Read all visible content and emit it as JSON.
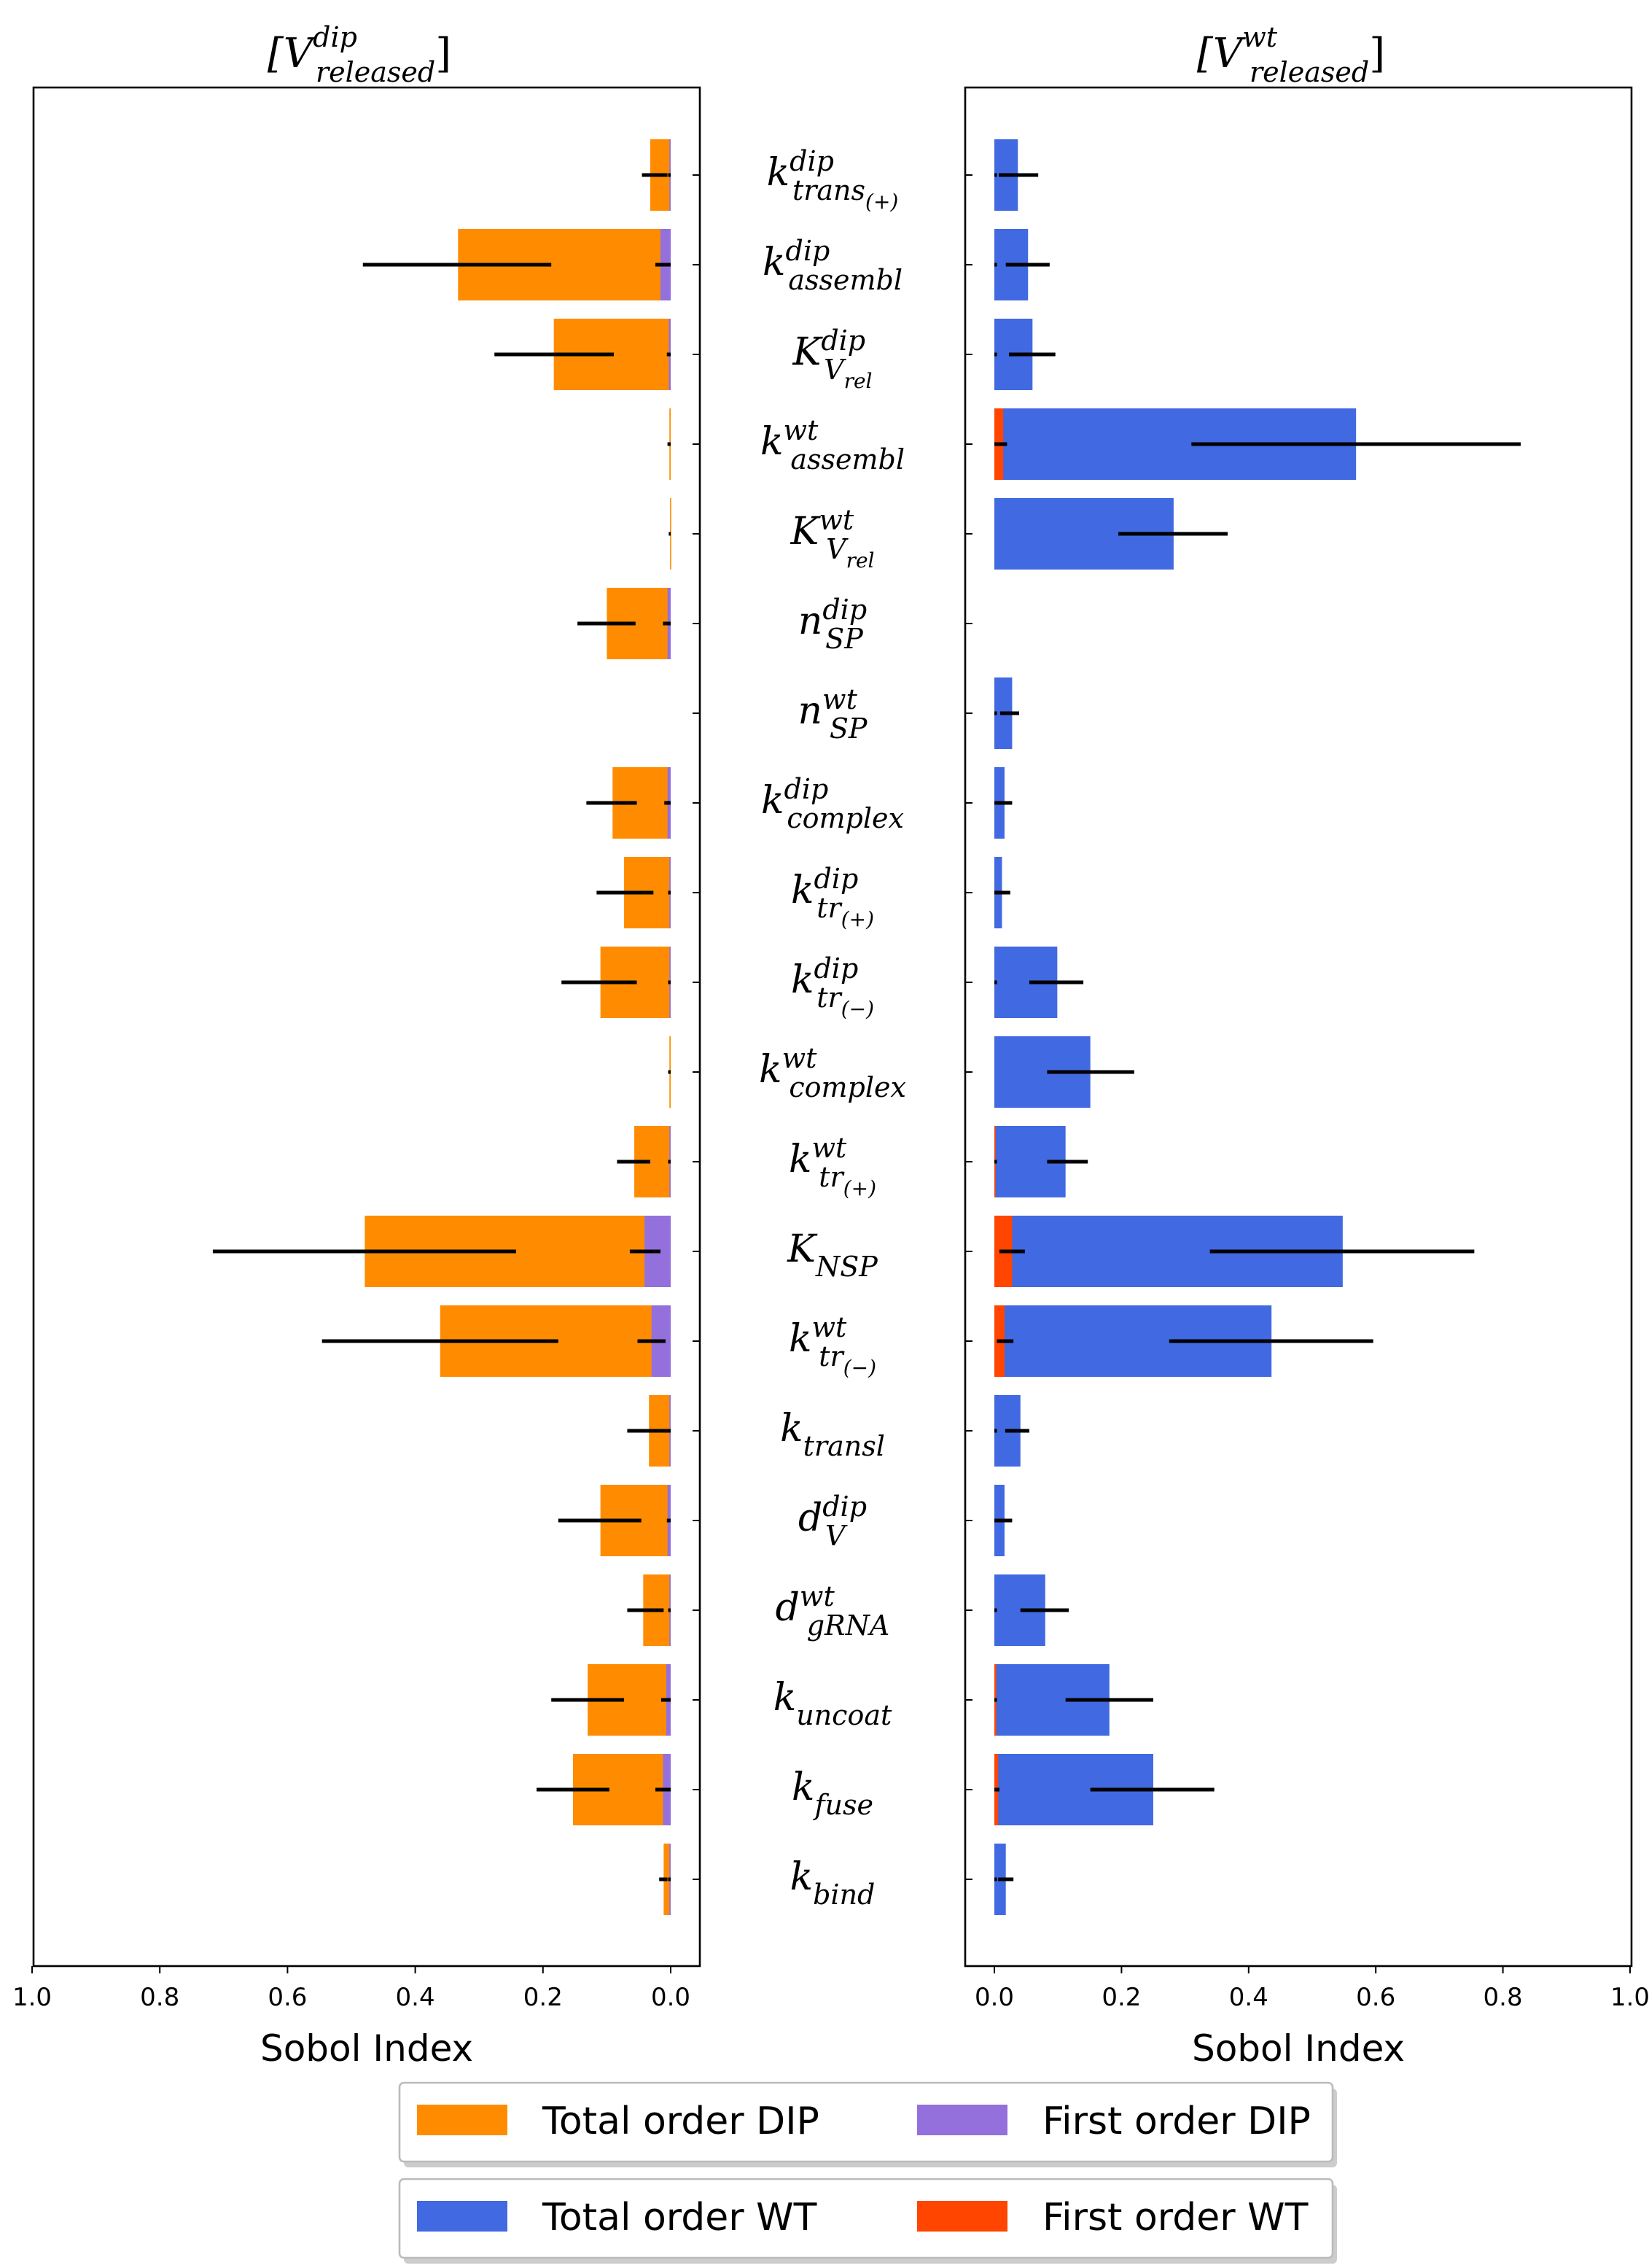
{
  "chart_data": [
    {
      "type": "bar",
      "orientation": "horizontal",
      "title": {
        "base": "[V",
        "sup": "dip",
        "sub": "released",
        "close": "]"
      },
      "xlabel": "Sobol Index",
      "xlim": [
        1.0,
        -0.03
      ],
      "x_inverted": true,
      "xticks": [
        "1.0",
        "0.8",
        "0.6",
        "0.4",
        "0.2",
        "0.0"
      ],
      "series": [
        {
          "name": "Total order DIP",
          "color": "#ff8c00",
          "values": [
            0.032,
            0.333,
            0.183,
            0.002,
            0.001,
            0.1,
            0,
            0.091,
            0.073,
            0.11,
            0.002,
            0.057,
            0.479,
            0.361,
            0.034,
            0.11,
            0.043,
            0.13,
            0.153,
            0.011
          ],
          "error_low": [
            0.005,
            0.187,
            0.089,
            0,
            0,
            0.055,
            0,
            0.053,
            0.027,
            0.053,
            0,
            0.032,
            0.242,
            0.176,
            0,
            0.046,
            0.011,
            0.073,
            0.096,
            0.005
          ],
          "error_high": [
            0.045,
            0.482,
            0.276,
            0.005,
            0.003,
            0.146,
            0,
            0.132,
            0.116,
            0.171,
            0.004,
            0.084,
            0.717,
            0.546,
            0.068,
            0.176,
            0.068,
            0.187,
            0.21,
            0.018
          ]
        },
        {
          "name": "First order DIP",
          "color": "#9370db",
          "values": [
            0.002,
            0.016,
            0.003,
            0,
            0,
            0.005,
            0,
            0.005,
            0.002,
            0.002,
            0,
            0.002,
            0.041,
            0.03,
            0.002,
            0.005,
            0.002,
            0.007,
            0.012,
            0.002
          ],
          "error_low": [
            0,
            0,
            0,
            0,
            0,
            0,
            0,
            0,
            0,
            0,
            0,
            0,
            0.016,
            0.008,
            0,
            0,
            0,
            0,
            0,
            0
          ],
          "error_high": [
            0.004,
            0.024,
            0.006,
            0,
            0,
            0.012,
            0,
            0.01,
            0.004,
            0.004,
            0,
            0.004,
            0.064,
            0.052,
            0.004,
            0.006,
            0.004,
            0.015,
            0.024,
            0.004
          ]
        }
      ]
    },
    {
      "type": "bar",
      "orientation": "horizontal",
      "title": {
        "base": "[V",
        "sup": "wt",
        "sub": "released",
        "close": "]"
      },
      "xlabel": "Sobol Index",
      "xlim": [
        -0.04,
        1.0
      ],
      "xticks": [
        "0.0",
        "0.2",
        "0.4",
        "0.6",
        "0.8",
        "1.0"
      ],
      "series": [
        {
          "name": "Total order WT",
          "color": "#4169e1",
          "values": [
            0.037,
            0.053,
            0.06,
            0.569,
            0.282,
            0,
            0.028,
            0.016,
            0.012,
            0.099,
            0.151,
            0.112,
            0.548,
            0.436,
            0.041,
            0.016,
            0.08,
            0.181,
            0.25,
            0.018
          ],
          "error_low": [
            0.007,
            0.018,
            0.023,
            0.31,
            0.195,
            0,
            0.009,
            0.004,
            0.002,
            0.055,
            0.083,
            0.083,
            0.339,
            0.275,
            0.017,
            0.004,
            0.041,
            0.112,
            0.151,
            0.006
          ],
          "error_high": [
            0.069,
            0.087,
            0.096,
            0.828,
            0.367,
            0,
            0.039,
            0.028,
            0.025,
            0.14,
            0.22,
            0.147,
            0.755,
            0.596,
            0.055,
            0.028,
            0.117,
            0.25,
            0.346,
            0.03
          ]
        },
        {
          "name": "First order WT",
          "color": "#ff4500",
          "values": [
            0,
            0,
            0,
            0.014,
            0,
            0,
            0,
            0,
            0,
            0,
            0,
            0.002,
            0.028,
            0.016,
            0,
            0,
            0,
            0.003,
            0.006,
            0
          ],
          "error_low": [
            0,
            0,
            0,
            0,
            0,
            0,
            0,
            0,
            0,
            0,
            0,
            0,
            0.008,
            0.004,
            0,
            0,
            0,
            0,
            0,
            0
          ],
          "error_high": [
            0.004,
            0.004,
            0.004,
            0.02,
            0,
            0,
            0.004,
            0.004,
            0.004,
            0.004,
            0,
            0.004,
            0.048,
            0.03,
            0.004,
            0.004,
            0.004,
            0.004,
            0.008,
            0.004
          ]
        }
      ]
    }
  ],
  "parameters": [
    {
      "base": "k",
      "sup": "dip",
      "sub": "trans",
      "subsub": "(+)"
    },
    {
      "base": "k",
      "sup": "dip",
      "sub": "assembl"
    },
    {
      "base": "K",
      "sup": "dip",
      "sub": "V",
      "subsub": "rel"
    },
    {
      "base": "k",
      "sup": "wt",
      "sub": "assembl"
    },
    {
      "base": "K",
      "sup": "wt",
      "sub": "V",
      "subsub": "rel"
    },
    {
      "base": "n",
      "sup": "dip",
      "sub": "SP"
    },
    {
      "base": "n",
      "sup": "wt",
      "sub": "SP"
    },
    {
      "base": "k",
      "sup": "dip",
      "sub": "complex"
    },
    {
      "base": "k",
      "sup": "dip",
      "sub": "tr",
      "subsub": "(+)"
    },
    {
      "base": "k",
      "sup": "dip",
      "sub": "tr",
      "subsub": "(−)"
    },
    {
      "base": "k",
      "sup": "wt",
      "sub": "complex"
    },
    {
      "base": "k",
      "sup": "wt",
      "sub": "tr",
      "subsub": "(+)"
    },
    {
      "base": "K",
      "sub": "NSP"
    },
    {
      "base": "k",
      "sup": "wt",
      "sub": "tr",
      "subsub": "(−)"
    },
    {
      "base": "k",
      "sub": "transl"
    },
    {
      "base": "d",
      "sup": "dip",
      "sub": "V"
    },
    {
      "base": "d",
      "sup": "wt",
      "sub": "gRNA"
    },
    {
      "base": "k",
      "sub": "uncoat"
    },
    {
      "base": "k",
      "sub": "fuse"
    },
    {
      "base": "k",
      "sub": "bind"
    }
  ],
  "legend": [
    [
      {
        "label": "Total order DIP",
        "color": "#ff8c00"
      },
      {
        "label": "First order DIP",
        "color": "#9370db"
      }
    ],
    [
      {
        "label": "Total order WT",
        "color": "#4169e1"
      },
      {
        "label": "First order WT",
        "color": "#ff4500"
      }
    ]
  ]
}
